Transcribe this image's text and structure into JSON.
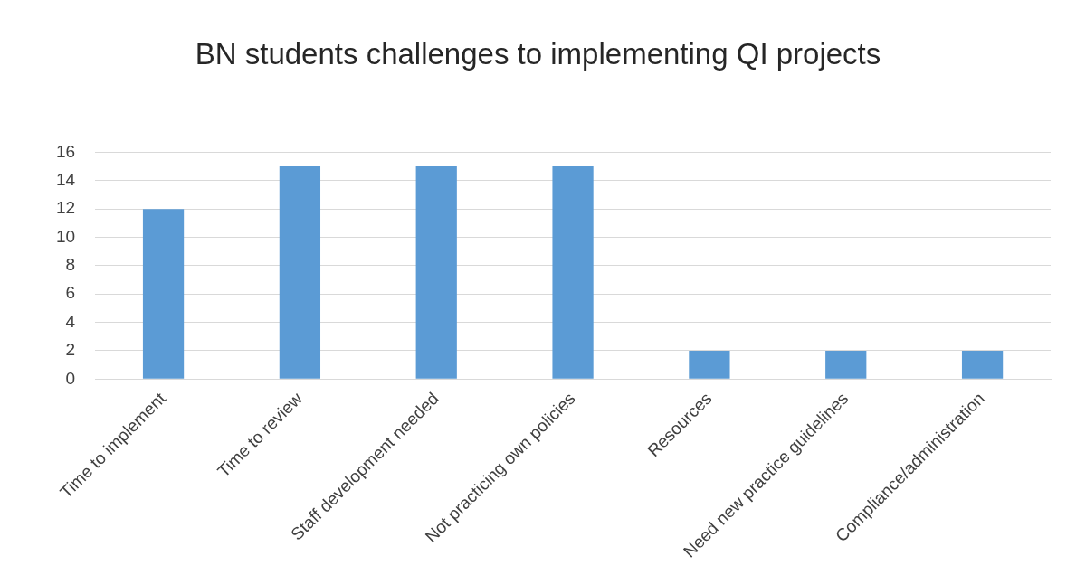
{
  "chart_data": {
    "type": "bar",
    "title": "BN students challenges to implementing QI projects",
    "categories": [
      "Time to implement",
      "Time to review",
      "Staff development needed",
      "Not practicing own policies",
      "Resources",
      "Need new practice guidelines",
      "Compliance/administration"
    ],
    "values": [
      12,
      15,
      15,
      15,
      2,
      2,
      2
    ],
    "color": "#5b9bd5",
    "ylim": [
      0,
      16
    ],
    "yticks": [
      0,
      2,
      4,
      6,
      8,
      10,
      12,
      14,
      16
    ],
    "grid": "y",
    "legend": false
  }
}
